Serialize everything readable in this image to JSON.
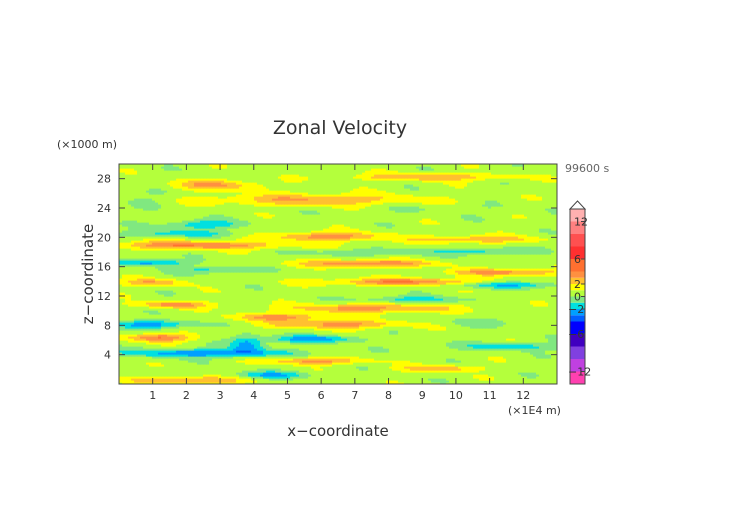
{
  "chart_data": {
    "type": "heatmap",
    "title": "Zonal Velocity",
    "xlabel": "x−coordinate",
    "ylabel": "z−coordinate",
    "x_unit_note": "(×1E4 m)",
    "y_unit_note": "(×1000 m)",
    "time_label": "99600 s",
    "xlim": [
      0,
      13
    ],
    "ylim": [
      0,
      30
    ],
    "x_ticks": [
      "1",
      "2",
      "3",
      "4",
      "5",
      "6",
      "7",
      "8",
      "9",
      "10",
      "11",
      "12"
    ],
    "y_ticks": [
      "4",
      "8",
      "12",
      "16",
      "20",
      "24",
      "28"
    ],
    "colorbar": {
      "tick_labels": [
        "12",
        "6",
        "2",
        "0",
        "−2",
        "−6",
        "−12"
      ],
      "levels": [
        -14,
        -12,
        -10,
        -8,
        -6,
        -4,
        -3,
        -2,
        -1,
        0,
        1,
        2,
        3,
        4,
        6,
        8,
        10,
        12,
        14
      ],
      "colors": [
        "#ff40b0",
        "#c040e0",
        "#8040e0",
        "#4000c0",
        "#0000ff",
        "#0060ff",
        "#00a0ff",
        "#00e0e0",
        "#80e880",
        "#b4ff3c",
        "#ffff00",
        "#ffc030",
        "#ff9040",
        "#ff7030",
        "#ff3030",
        "#ff5050",
        "#ff8080",
        "#ffb0b0"
      ],
      "extend": "max"
    },
    "background_value": 0.5,
    "features": [
      {
        "x": 2.8,
        "z": 27.2,
        "wx": 1.4,
        "wz": 0.7,
        "v": 2.5
      },
      {
        "x": 9.2,
        "z": 28.3,
        "wx": 2.2,
        "wz": 0.5,
        "v": 2.5
      },
      {
        "x": 5.8,
        "z": 25.2,
        "wx": 3.0,
        "wz": 0.8,
        "v": 2.5
      },
      {
        "x": 1.0,
        "z": 25.6,
        "wx": 0.9,
        "wz": 1.4,
        "v": -0.6
      },
      {
        "x": 9.8,
        "z": 24.0,
        "wx": 2.8,
        "wz": 0.7,
        "v": -0.5
      },
      {
        "x": 2.5,
        "z": 21.8,
        "wx": 1.1,
        "wz": 0.6,
        "v": -2.5
      },
      {
        "x": 6.2,
        "z": 20.2,
        "wx": 1.6,
        "wz": 0.6,
        "v": 3.2
      },
      {
        "x": 2.3,
        "z": 19.0,
        "wx": 2.6,
        "wz": 0.55,
        "v": 3.5
      },
      {
        "x": 1.8,
        "z": 20.6,
        "wx": 1.7,
        "wz": 0.45,
        "v": -2.0
      },
      {
        "x": 7.5,
        "z": 18.0,
        "wx": 2.0,
        "wz": 0.45,
        "v": -1.5
      },
      {
        "x": 10.5,
        "z": 19.8,
        "wx": 1.8,
        "wz": 0.5,
        "v": 2.5
      },
      {
        "x": 10.9,
        "z": 18.2,
        "wx": 1.4,
        "wz": 0.45,
        "v": -2.0
      },
      {
        "x": 0.9,
        "z": 16.6,
        "wx": 1.1,
        "wz": 0.45,
        "v": -3.0
      },
      {
        "x": 2.8,
        "z": 15.6,
        "wx": 1.1,
        "wz": 0.45,
        "v": -2.0
      },
      {
        "x": 7.4,
        "z": 16.5,
        "wx": 1.9,
        "wz": 0.5,
        "v": 3.5
      },
      {
        "x": 11.5,
        "z": 15.3,
        "wx": 1.7,
        "wz": 0.45,
        "v": 3.0
      },
      {
        "x": 8.5,
        "z": 14.0,
        "wx": 2.3,
        "wz": 0.5,
        "v": 3.5
      },
      {
        "x": 11.5,
        "z": 13.6,
        "wx": 1.8,
        "wz": 0.45,
        "v": -2.5
      },
      {
        "x": 1.0,
        "z": 13.9,
        "wx": 0.9,
        "wz": 0.5,
        "v": 2.5
      },
      {
        "x": 8.7,
        "z": 11.6,
        "wx": 1.5,
        "wz": 0.45,
        "v": -2.0
      },
      {
        "x": 1.6,
        "z": 10.9,
        "wx": 1.1,
        "wz": 0.45,
        "v": 3.0
      },
      {
        "x": 7.4,
        "z": 10.4,
        "wx": 2.3,
        "wz": 0.6,
        "v": 3.0
      },
      {
        "x": 4.8,
        "z": 9.2,
        "wx": 1.4,
        "wz": 0.5,
        "v": 3.0
      },
      {
        "x": 1.0,
        "z": 8.2,
        "wx": 1.2,
        "wz": 0.55,
        "v": -3.0
      },
      {
        "x": 6.5,
        "z": 8.2,
        "wx": 1.9,
        "wz": 0.55,
        "v": 3.0
      },
      {
        "x": 1.2,
        "z": 6.4,
        "wx": 1.0,
        "wz": 0.55,
        "v": 3.5
      },
      {
        "x": 5.8,
        "z": 6.2,
        "wx": 1.3,
        "wz": 0.5,
        "v": -3.0
      },
      {
        "x": 2.5,
        "z": 4.3,
        "wx": 2.4,
        "wz": 0.55,
        "v": -3.5
      },
      {
        "x": 3.8,
        "z": 5.5,
        "wx": 0.5,
        "wz": 1.2,
        "v": -3.0
      },
      {
        "x": 5.8,
        "z": 3.2,
        "wx": 1.4,
        "wz": 0.45,
        "v": 3.0
      },
      {
        "x": 11.7,
        "z": 5.2,
        "wx": 1.7,
        "wz": 0.5,
        "v": -2.0
      },
      {
        "x": 2.0,
        "z": 0.6,
        "wx": 1.6,
        "wz": 0.5,
        "v": 3.0
      },
      {
        "x": 4.5,
        "z": 1.3,
        "wx": 1.1,
        "wz": 0.5,
        "v": -2.5
      },
      {
        "x": 9.5,
        "z": 2.2,
        "wx": 1.1,
        "wz": 0.45,
        "v": 2.5
      },
      {
        "x": 10.8,
        "z": 8.5,
        "wx": 1.5,
        "wz": 0.6,
        "v": -0.8
      }
    ]
  }
}
